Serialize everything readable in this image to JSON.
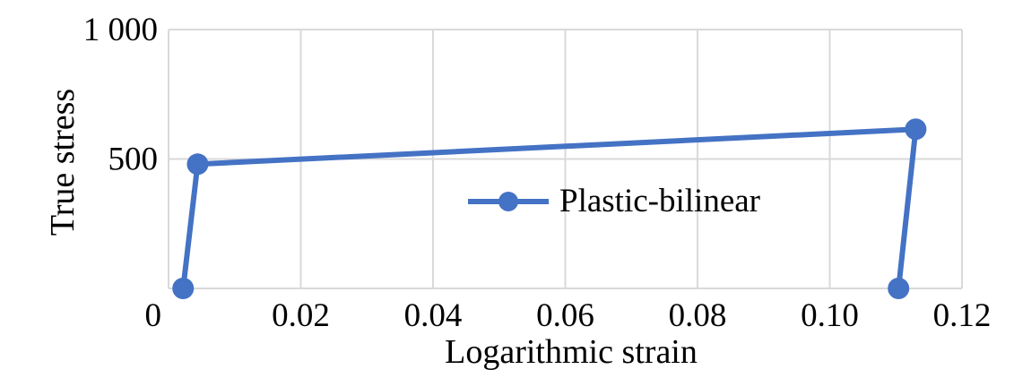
{
  "chart_data": {
    "type": "line",
    "title": "",
    "xlabel": "Logarithmic strain",
    "ylabel": "True stress",
    "xlim": [
      0,
      0.12
    ],
    "ylim": [
      0,
      1000
    ],
    "x_ticks": [
      "0",
      "0.02",
      "0.04",
      "0.06",
      "0.08",
      "0.10",
      "0.12"
    ],
    "y_ticks": [
      "500",
      "1 000"
    ],
    "grid": true,
    "legend_position": "center-right",
    "series": [
      {
        "name": "Plastic-bilinear",
        "color": "#4472C4",
        "marker": "circle",
        "points": [
          {
            "x": 0.0022,
            "y": 0
          },
          {
            "x": 0.0044,
            "y": 480
          },
          {
            "x": 0.113,
            "y": 615
          },
          {
            "x": 0.1104,
            "y": 0
          }
        ]
      }
    ]
  }
}
